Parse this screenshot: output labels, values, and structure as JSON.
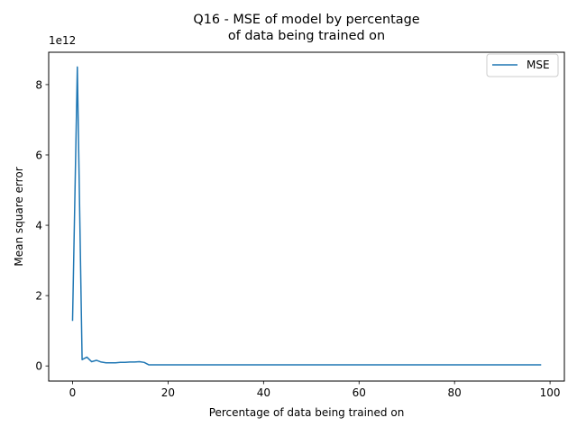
{
  "chart_data": {
    "type": "line",
    "title_lines": [
      "Q16 - MSE of model by percentage",
      "of data being trained on"
    ],
    "xlabel": "Percentage of data being trained on",
    "ylabel": "Mean square error",
    "y_offset_text": "1e12",
    "xlim": [
      -5,
      103
    ],
    "ylim": [
      -0.43,
      8.92
    ],
    "y_scale_factor": 1000000000000.0,
    "x_ticks": [
      0,
      20,
      40,
      60,
      80,
      100
    ],
    "x_tick_labels": [
      "0",
      "20",
      "40",
      "60",
      "80",
      "100"
    ],
    "y_ticks": [
      0,
      2,
      4,
      6,
      8
    ],
    "y_tick_labels": [
      "0",
      "2",
      "4",
      "6",
      "8"
    ],
    "grid": false,
    "legend_position": "upper right",
    "colors": {
      "series": "#1f77b4",
      "axes": "#000000",
      "legend_border": "#cccccc"
    },
    "series": [
      {
        "name": "MSE",
        "x": [
          0,
          1,
          2,
          3,
          4,
          5,
          6,
          7,
          8,
          9,
          10,
          11,
          12,
          13,
          14,
          15,
          16,
          17,
          18,
          20,
          25,
          30,
          40,
          50,
          60,
          70,
          80,
          90,
          98
        ],
        "y": [
          1.3,
          8.5,
          0.18,
          0.25,
          0.12,
          0.16,
          0.11,
          0.09,
          0.09,
          0.09,
          0.1,
          0.1,
          0.11,
          0.11,
          0.12,
          0.1,
          0.03,
          0.03,
          0.03,
          0.03,
          0.03,
          0.03,
          0.03,
          0.03,
          0.03,
          0.03,
          0.03,
          0.03,
          0.03
        ]
      }
    ]
  }
}
